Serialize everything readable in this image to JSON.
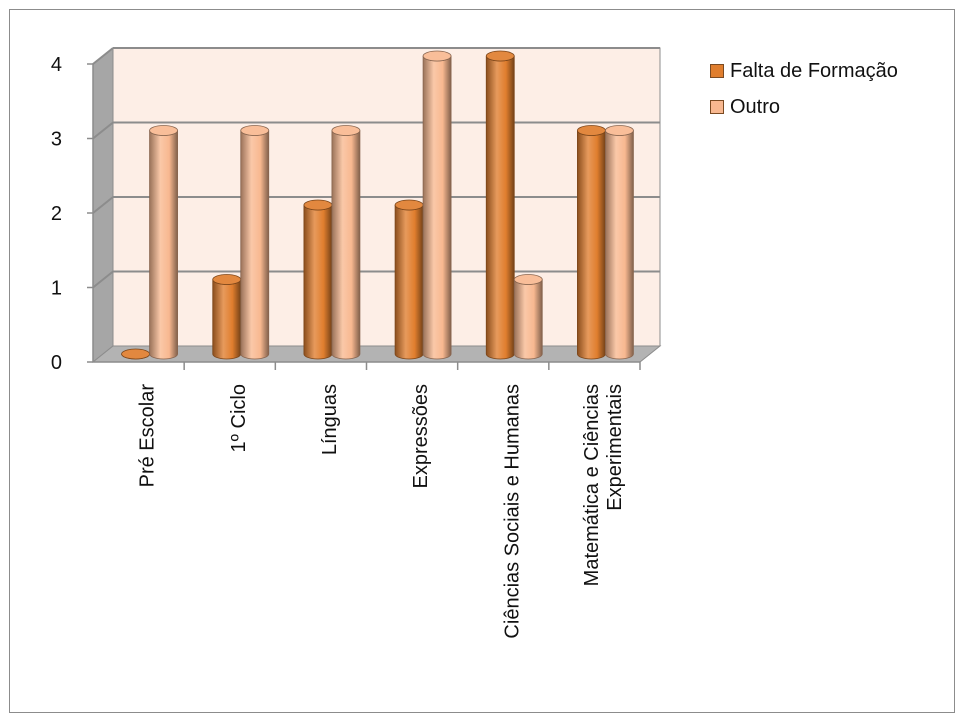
{
  "chart_data": {
    "type": "bar",
    "categories": [
      "Pré Escolar",
      "1º Ciclo",
      "Línguas",
      "Expressões",
      "Ciências Sociais e Humanas",
      "Matemática e Ciências Experimentais"
    ],
    "category_lines": [
      [
        "Pré Escolar"
      ],
      [
        "1º Ciclo"
      ],
      [
        "Línguas"
      ],
      [
        "Expressões"
      ],
      [
        "Ciências Sociais e Humanas"
      ],
      [
        "Matemática e Ciências",
        "Experimentais"
      ]
    ],
    "series": [
      {
        "name": "Falta de Formação",
        "values": [
          0,
          1,
          2,
          2,
          4,
          3
        ],
        "color": "#e07e2e"
      },
      {
        "name": "Outro",
        "values": [
          3,
          3,
          3,
          4,
          1,
          3
        ],
        "color": "#f8b890"
      }
    ],
    "ylim": [
      0,
      4
    ],
    "yticks": [
      "0",
      "1",
      "2",
      "3",
      "4"
    ],
    "grid": true,
    "legend_position": "right",
    "background_color": "#fdeee6"
  }
}
